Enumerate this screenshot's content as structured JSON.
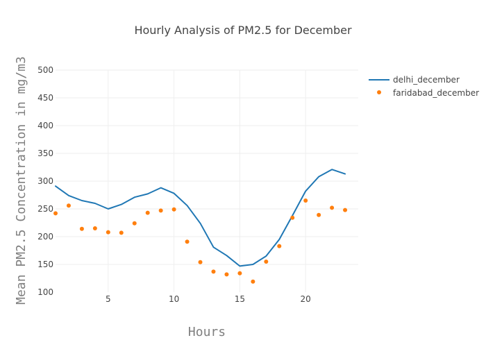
{
  "chart_data": {
    "type": "line",
    "title": "Hourly Analysis of PM2.5 for December",
    "xlabel": "Hours",
    "ylabel": "Mean PM2.5 Concentration in mg/m3",
    "xlim": [
      1,
      24
    ],
    "ylim": [
      100,
      500
    ],
    "x_ticks": [
      5,
      10,
      15,
      20
    ],
    "y_ticks": [
      100,
      150,
      200,
      250,
      300,
      350,
      400,
      450,
      500
    ],
    "grid": true,
    "legend_position": "top-right",
    "series": [
      {
        "name": "delhi_december",
        "mode": "lines",
        "color": "#1f77b4",
        "x": [
          1,
          2,
          3,
          4,
          5,
          6,
          7,
          8,
          9,
          10,
          11,
          12,
          13,
          14,
          15,
          16,
          17,
          18,
          19,
          20,
          21,
          22,
          23
        ],
        "y": [
          291,
          274,
          265,
          260,
          250,
          258,
          271,
          277,
          288,
          278,
          256,
          224,
          181,
          166,
          147,
          150,
          165,
          195,
          238,
          282,
          308,
          321,
          313
        ]
      },
      {
        "name": "faridabad_december",
        "mode": "markers",
        "color": "#ff7f0e",
        "x": [
          1,
          2,
          3,
          4,
          5,
          6,
          7,
          8,
          9,
          10,
          11,
          12,
          13,
          14,
          15,
          16,
          17,
          18,
          19,
          20,
          21,
          22,
          23
        ],
        "y": [
          242,
          256,
          214,
          215,
          208,
          207,
          224,
          243,
          247,
          249,
          191,
          154,
          137,
          132,
          134,
          119,
          155,
          183,
          234,
          265,
          239,
          252,
          248
        ]
      }
    ]
  }
}
